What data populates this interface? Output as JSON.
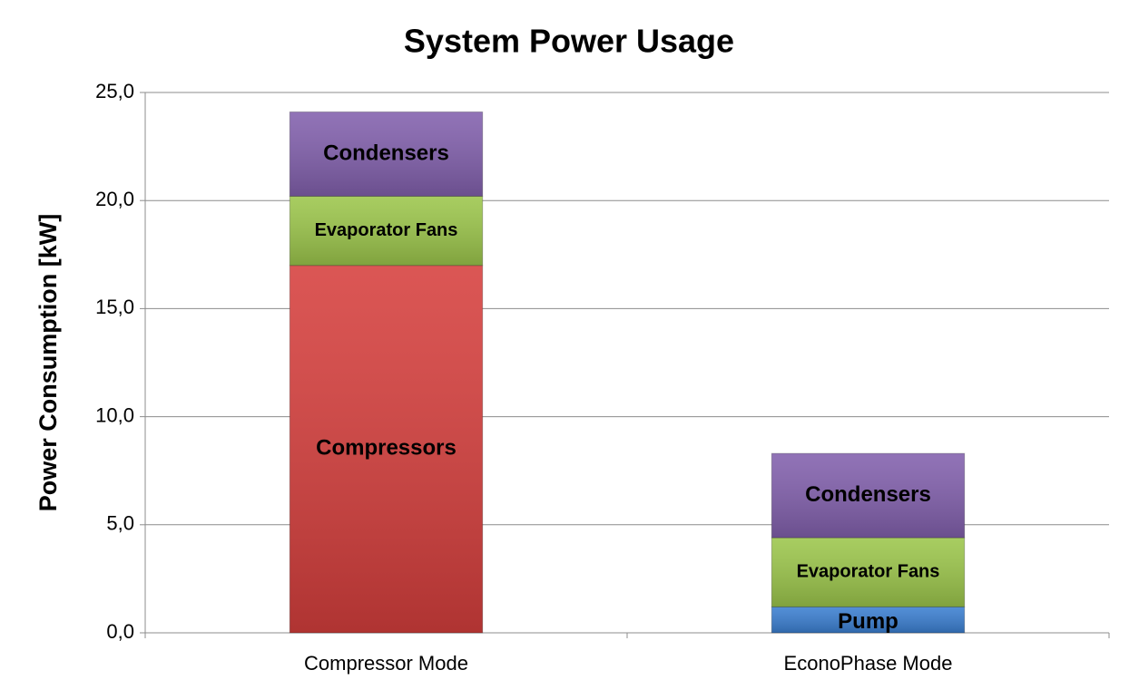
{
  "chart_data": {
    "type": "stacked-bar",
    "title": "System Power Usage",
    "y_label": "Power Consumption [kW]",
    "categories": [
      "Compressor Mode",
      "EconoPhase Mode"
    ],
    "series": [
      {
        "name": "Compressors",
        "color": "#d63f3d",
        "values": [
          17.0,
          null
        ]
      },
      {
        "name": "Pump",
        "color": "#3b7fd1",
        "values": [
          null,
          1.2
        ]
      },
      {
        "name": "Evaporator Fans",
        "color": "#9cc64b",
        "values": [
          3.2,
          3.2
        ]
      },
      {
        "name": "Condensers",
        "color": "#8260ad",
        "values": [
          3.9,
          3.9
        ]
      }
    ],
    "ylim": [
      0,
      25
    ],
    "yticks": [
      {
        "value": 0,
        "label": "0,0"
      },
      {
        "value": 5,
        "label": "5,0"
      },
      {
        "value": 10,
        "label": "10,0"
      },
      {
        "value": 15,
        "label": "15,0"
      },
      {
        "value": 20,
        "label": "20,0"
      },
      {
        "value": 25,
        "label": "25,0"
      }
    ],
    "grid": true
  }
}
